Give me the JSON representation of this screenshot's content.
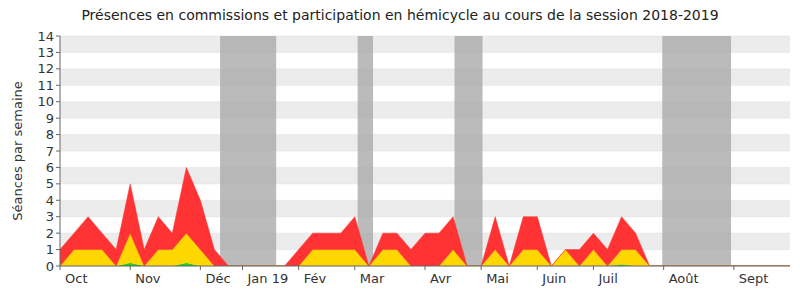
{
  "chart_data": {
    "type": "area",
    "title": "Présences en commissions et participation en hémicycle au cours de la session 2018-2019",
    "y_label": "Séances par semaine",
    "stacked": true,
    "grid": true,
    "categories": [
      "Oct",
      null,
      null,
      null,
      null,
      "Nov",
      null,
      null,
      null,
      null,
      "Déc",
      null,
      null,
      "Jan 19",
      null,
      null,
      null,
      "Fév",
      null,
      null,
      null,
      "Mar",
      null,
      null,
      null,
      null,
      "Avr",
      null,
      null,
      null,
      "Mai",
      null,
      null,
      null,
      "Juin",
      null,
      null,
      null,
      "Juil",
      null,
      null,
      null,
      null,
      "Août",
      null,
      null,
      null,
      null,
      "Sept",
      null,
      null,
      null,
      null
    ],
    "series": [
      {
        "color": "#22cc22",
        "values": [
          0,
          0,
          0,
          0,
          0,
          0.2,
          0,
          0,
          0,
          0.2,
          0,
          0,
          0,
          0,
          0,
          0,
          0,
          0,
          0,
          0,
          0,
          0,
          0,
          0,
          0,
          0,
          0,
          0,
          0,
          0,
          0,
          0,
          0,
          0,
          0,
          0,
          0,
          0,
          0,
          0,
          0.1,
          0,
          0,
          0,
          0,
          0,
          0,
          0,
          0,
          0,
          0,
          0,
          0
        ]
      },
      {
        "color": "#ffd700",
        "values": [
          0,
          1,
          1,
          1,
          0,
          1.8,
          0,
          1,
          1,
          1.8,
          1,
          0,
          0,
          0,
          0,
          0,
          0,
          0,
          1,
          1,
          1,
          1,
          0,
          1,
          1,
          0,
          0,
          0,
          1,
          0,
          0,
          1,
          0,
          1,
          1,
          0,
          1,
          0,
          1,
          0,
          0.9,
          1,
          0,
          0,
          0,
          0,
          0,
          0,
          0,
          0,
          0,
          0,
          0
        ]
      },
      {
        "color": "#ff3333",
        "values": [
          1,
          1,
          2,
          1,
          1,
          3,
          1,
          2,
          1,
          4,
          3,
          1,
          0,
          0,
          0,
          0,
          0,
          1,
          1,
          1,
          1,
          2,
          0,
          1,
          1,
          1,
          2,
          2,
          2,
          0,
          0,
          2,
          0,
          2,
          2,
          0,
          0,
          1,
          1,
          1,
          2,
          1,
          0,
          0,
          0,
          0,
          0,
          0,
          0,
          0,
          0,
          0,
          0
        ]
      }
    ],
    "bands": [
      [
        11.4,
        15.4
      ],
      [
        21.2,
        22.3
      ],
      [
        28.1,
        30.1
      ],
      [
        42.9,
        47.8
      ]
    ],
    "ylim": [
      0,
      14
    ],
    "yticks": [
      0,
      1,
      2,
      3,
      4,
      5,
      6,
      7,
      8,
      9,
      10,
      11,
      12,
      13,
      14
    ]
  }
}
